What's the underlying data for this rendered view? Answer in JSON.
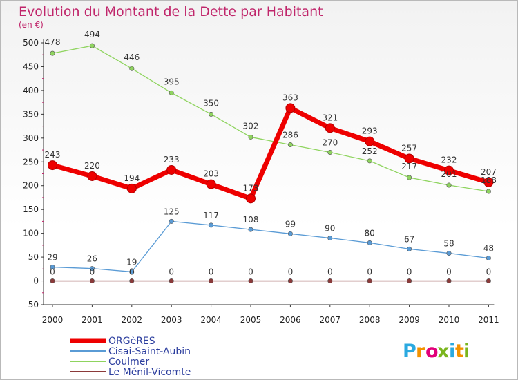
{
  "chart_data": {
    "type": "line",
    "title": "Evolution du Montant de la Dette par Habitant",
    "unit_label": "(en €)",
    "x": [
      "2000",
      "2001",
      "2002",
      "2003",
      "2004",
      "2005",
      "2006",
      "2007",
      "2008",
      "2009",
      "2010",
      "2011"
    ],
    "ylim": [
      -50,
      500
    ],
    "yticks": [
      "-50",
      "0",
      "50",
      "100",
      "150",
      "200",
      "250",
      "300",
      "350",
      "400",
      "450",
      "500"
    ],
    "grid": false,
    "legend_position": "bottom-left",
    "series": [
      {
        "name": "Coulmer",
        "color": "#8fd45f",
        "values": [
          478,
          494,
          446,
          395,
          350,
          302,
          286,
          270,
          252,
          217,
          201,
          188
        ]
      },
      {
        "name": "Cisai-Saint-Aubin",
        "color": "#5a9bd5",
        "values": [
          29,
          26,
          19,
          125,
          117,
          108,
          99,
          90,
          80,
          67,
          58,
          48
        ]
      },
      {
        "name": "Le Ménil-Vicomte",
        "color": "#8b3a3a",
        "values": [
          0,
          0,
          0,
          0,
          0,
          0,
          0,
          0,
          0,
          0,
          0,
          0
        ]
      },
      {
        "name": "ORGèRES",
        "color": "#ee0000",
        "values": [
          243,
          220,
          194,
          233,
          203,
          173,
          363,
          321,
          293,
          257,
          232,
          207
        ]
      }
    ],
    "data_labels": {
      "Coulmer": [
        "478",
        "494",
        "446",
        "395",
        "350",
        "302",
        "286",
        "270",
        "252",
        "217",
        "201",
        "188"
      ],
      "Cisai-Saint-Aubin": [
        "29",
        "26",
        "19",
        "125",
        "117",
        "108",
        "99",
        "90",
        "80",
        "67",
        "58",
        "48"
      ],
      "Le Ménil-Vicomte": [
        "0",
        "0",
        "0",
        "0",
        "0",
        "0",
        "0",
        "0",
        "0",
        "0",
        "0",
        "0"
      ],
      "ORGèRES": [
        "243",
        "220",
        "194",
        "233",
        "203",
        "173",
        "363",
        "321",
        "293",
        "257",
        "232",
        "207"
      ]
    },
    "legend": [
      "ORGèRES",
      "Cisai-Saint-Aubin",
      "Coulmer",
      "Le Ménil-Vicomte"
    ]
  },
  "logo": {
    "text": "Proxiti",
    "colors": [
      "#2aa9e0",
      "#f39200",
      "#e2007a",
      "#7ab51d",
      "#2aa9e0",
      "#f39200",
      "#7ab51d"
    ]
  }
}
